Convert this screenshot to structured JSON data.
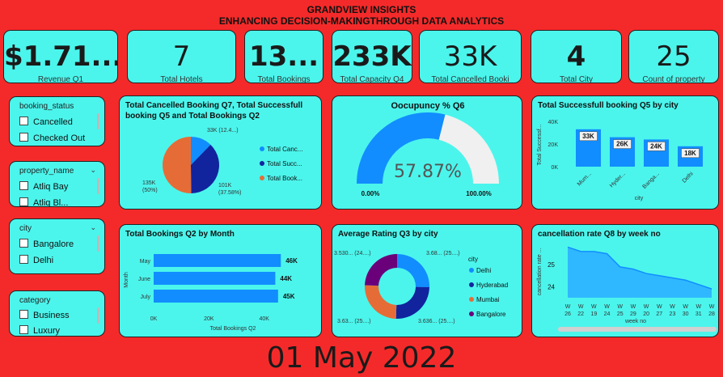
{
  "header": {
    "line1": "GRANDVIEW  INSIGHTS",
    "line2": "ENHANCING DECISION-MAKINGTHROUGH DATA ANALYTICS"
  },
  "kpis": [
    {
      "value": "$1.71...",
      "label": "Revenue Q1"
    },
    {
      "value": "7",
      "label": "Total Hotels"
    },
    {
      "value": "13...",
      "label": "Total Bookings"
    },
    {
      "value": "233K",
      "label": "Total Capacity Q4"
    },
    {
      "value": "33K",
      "label": "Total Cancelled Booki"
    },
    {
      "value": "4",
      "label": "Total City"
    },
    {
      "value": "25",
      "label": "Count of property"
    }
  ],
  "slicers": {
    "booking_status": {
      "title": "booking_status",
      "items": [
        "Cancelled",
        "Checked Out"
      ]
    },
    "property_name": {
      "title": "property_name",
      "items": [
        "Atliq Bay",
        "Atliq Bl..."
      ]
    },
    "city": {
      "title": "city",
      "items": [
        "Bangalore",
        "Delhi"
      ]
    },
    "category": {
      "title": "category",
      "items": [
        "Business",
        "Luxury"
      ]
    }
  },
  "pie_title": "Total Cancelled Booking Q7, Total Successfull booking Q5 and Total Bookings Q2",
  "occ_title": "Oocupuncy % Q6",
  "bar1_title": "Total Successfull booking Q5 by city",
  "bar2_title": "Total Bookings Q2 by Month",
  "donut_title": "Average Rating Q3 by city",
  "area_title": "cancellation rate Q8 by week no",
  "date": "01 May 2022",
  "colors": {
    "bg": "#f42a2a",
    "card": "#4bf5ec",
    "blue": "#118dff",
    "navy": "#12239e",
    "orange": "#e66c37",
    "purple": "#6b007b",
    "gray": "#f0f0f0"
  },
  "chart_data": [
    {
      "type": "pie",
      "slices": [
        {
          "name": "Total Canc...",
          "value": 33,
          "label": "33K (12.4...)",
          "color": "#118dff"
        },
        {
          "name": "Total  Succ...",
          "value": 101,
          "label": "101K (37.58%)",
          "color": "#12239e"
        },
        {
          "name": "Total Book...",
          "value": 135,
          "label": "135K (50%)",
          "color": "#e66c37"
        }
      ]
    },
    {
      "type": "gauge",
      "value": 57.87,
      "display": "57.87%",
      "min_label": "0.00%",
      "max_label": "100.00%"
    },
    {
      "type": "bar",
      "categories": [
        "Mum...",
        "Hyder...",
        "Banga...",
        "Delhi"
      ],
      "values": [
        33,
        26,
        24,
        18
      ],
      "data_labels": [
        "33K",
        "26K",
        "24K",
        "18K"
      ],
      "ylabel": "Total Successf...",
      "xlabel": "city",
      "yticks": [
        "40K",
        "20K",
        "0K"
      ],
      "ylim": [
        0,
        40
      ]
    },
    {
      "type": "bar",
      "orientation": "horizontal",
      "categories": [
        "May",
        "June",
        "July"
      ],
      "values": [
        46,
        44,
        45
      ],
      "data_labels": [
        "46K",
        "44K",
        "45K"
      ],
      "xlabel": "Total Bookings Q2",
      "ylabel": "Month",
      "xticks": [
        "0K",
        "20K",
        "40K"
      ],
      "xlim": [
        0,
        55
      ]
    },
    {
      "type": "pie",
      "donut": true,
      "legend_title": "city",
      "slices": [
        {
          "name": "Delhi",
          "value": 3.68,
          "label": "3.68... (25....)",
          "color": "#118dff"
        },
        {
          "name": "Hyderabad",
          "value": 3.636,
          "label": "3.636... (25....)",
          "color": "#12239e"
        },
        {
          "name": "Mumbai",
          "value": 3.63,
          "label": "3.63... (25....)",
          "color": "#e66c37"
        },
        {
          "name": "Bangalore",
          "value": 3.53,
          "label": "3.530... (24....)",
          "color": "#6b007b"
        }
      ]
    },
    {
      "type": "area",
      "x": [
        "W 26",
        "W 22",
        "W 19",
        "W 24",
        "W 25",
        "W 29",
        "W 20",
        "W 27",
        "W 23",
        "W 30",
        "W 31",
        "W 28"
      ],
      "values": [
        25.8,
        25.6,
        25.6,
        25.5,
        24.9,
        24.8,
        24.6,
        24.5,
        24.4,
        24.3,
        24.1,
        23.9
      ],
      "yticks": [
        "25",
        "24"
      ],
      "ylabel": "cancellation rate ...",
      "xlabel": "week no"
    }
  ]
}
